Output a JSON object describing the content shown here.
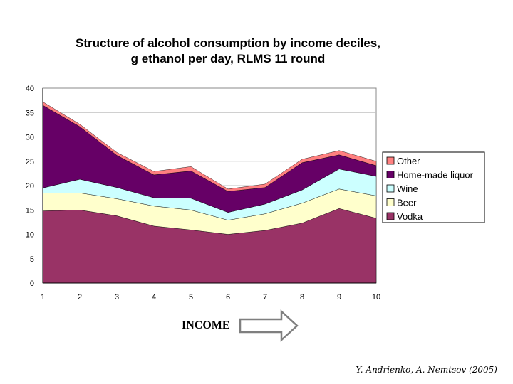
{
  "chart_data": {
    "type": "area",
    "stacked": true,
    "title_lines": [
      "Structure of alcohol consumption by income deciles,",
      "g ethanol per day, RLMS 11 round"
    ],
    "x": [
      "1",
      "2",
      "3",
      "4",
      "5",
      "6",
      "7",
      "8",
      "9",
      "10"
    ],
    "y_ticks": [
      "0",
      "5",
      "10",
      "15",
      "20",
      "25",
      "30",
      "35",
      "40"
    ],
    "ylim": [
      0,
      40
    ],
    "grid": "horizontal",
    "legend_position": "right",
    "series": [
      {
        "name": "Vodka",
        "color": "#993366",
        "values": [
          14.8,
          15.0,
          13.8,
          11.7,
          10.9,
          10.0,
          10.8,
          12.3,
          15.3,
          13.3
        ]
      },
      {
        "name": "Beer",
        "color": "#ffffcc",
        "values": [
          3.7,
          3.5,
          3.5,
          4.1,
          4.1,
          2.9,
          3.4,
          4.1,
          4.0,
          4.6
        ]
      },
      {
        "name": "Wine",
        "color": "#ccffff",
        "values": [
          1.0,
          2.8,
          2.3,
          1.7,
          2.4,
          1.6,
          2.0,
          2.7,
          4.1,
          4.0
        ]
      },
      {
        "name": "Home-made liquor",
        "color": "#660066",
        "values": [
          17.0,
          10.8,
          6.6,
          4.7,
          5.6,
          4.3,
          3.4,
          5.6,
          2.9,
          2.2
        ]
      },
      {
        "name": "Other",
        "color": "#ff8080",
        "values": [
          0.7,
          0.5,
          0.6,
          0.7,
          0.9,
          0.5,
          0.7,
          0.7,
          0.9,
          0.9
        ]
      }
    ]
  },
  "income_label": "INCOME",
  "credit": "Y. Andrienko, A. Nemtsov (2005)"
}
